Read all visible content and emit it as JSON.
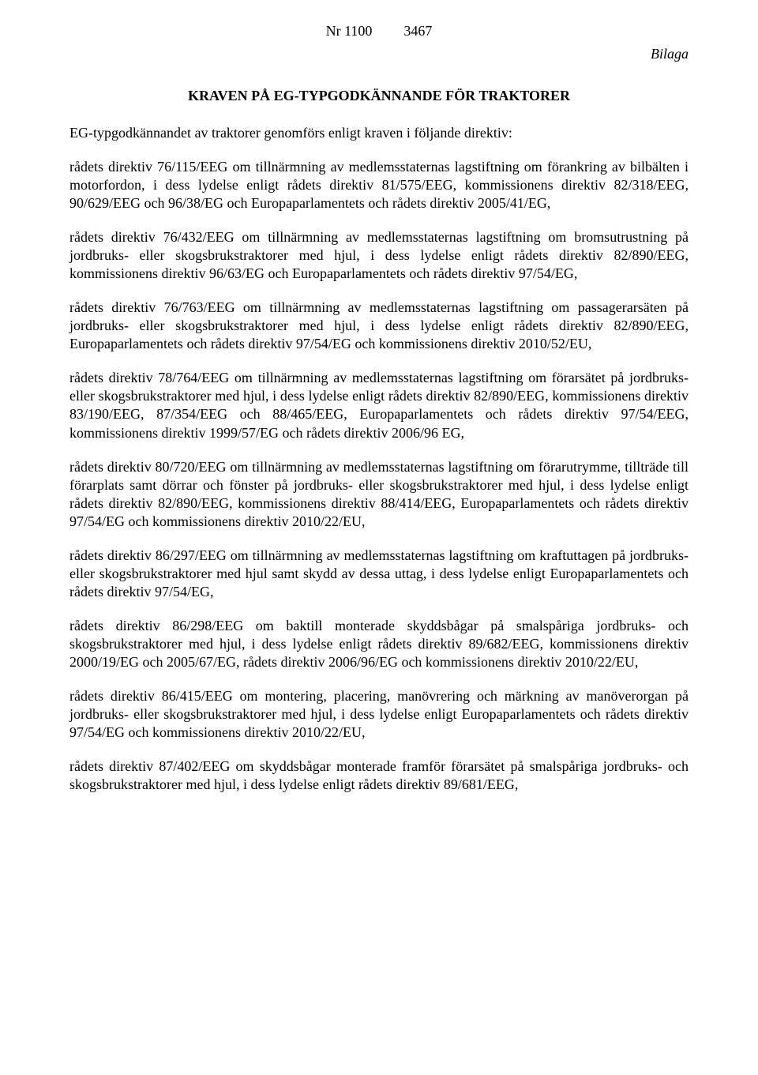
{
  "header": {
    "doc_nr": "Nr 1100",
    "page_nr": "3467",
    "annex_label": "Bilaga"
  },
  "title": "KRAVEN PÅ EG-TYPGODKÄNNANDE FÖR TRAKTORER",
  "intro": "EG-typgodkännandet av traktorer genomförs enligt kraven i följande direktiv:",
  "paragraphs": [
    "rådets direktiv 76/115/EEG om tillnärmning av medlemsstaternas lagstiftning om förankring av bilbälten i motorfordon, i dess lydelse enligt rådets direktiv 81/575/EEG, kommissionens direktiv 82/318/EEG, 90/629/EEG och 96/38/EG och Europaparlamentets och rådets direktiv 2005/41/EG,",
    "rådets direktiv 76/432/EEG om tillnärmning av medlemsstaternas lagstiftning om bromsutrustning på jordbruks- eller skogsbrukstraktorer med hjul, i dess lydelse enligt rådets direktiv 82/890/EEG, kommissionens direktiv 96/63/EG och Europaparlamentets och rådets direktiv 97/54/EG,",
    "rådets direktiv 76/763/EEG om tillnärmning av medlemsstaternas lagstiftning om passagerarsäten på jordbruks- eller skogsbrukstraktorer med hjul, i dess lydelse enligt rådets direktiv 82/890/EEG, Europaparlamentets och rådets direktiv 97/54/EG och kommissionens direktiv 2010/52/EU,",
    "rådets direktiv 78/764/EEG om tillnärmning av medlemsstaternas lagstiftning om förarsätet på jordbruks- eller skogsbrukstraktorer med hjul, i dess lydelse enligt rådets direktiv 82/890/EEG, kommissionens direktiv 83/190/EEG, 87/354/EEG och 88/465/EEG, Europaparlamentets och rådets direktiv 97/54/EEG, kommissionens direktiv 1999/57/EG och rådets direktiv 2006/96 EG,",
    "rådets direktiv 80/720/EEG om tillnärmning av medlemsstaternas lagstiftning om förarutrymme, tillträde till förarplats samt dörrar och fönster på jordbruks- eller skogsbrukstraktorer med hjul, i dess lydelse enligt rådets direktiv 82/890/EEG, kommissionens direktiv 88/414/EEG, Europaparlamentets och rådets direktiv 97/54/EG och kommissionens direktiv 2010/22/EU,",
    "rådets direktiv 86/297/EEG om tillnärmning av medlemsstaternas lagstiftning om kraftuttagen på jordbruks- eller skogsbrukstraktorer med hjul samt skydd av dessa uttag, i dess lydelse enligt Europaparlamentets och rådets direktiv 97/54/EG,",
    "rådets direktiv 86/298/EEG om baktill monterade skyddsbågar på smalspåriga jordbruks- och skogsbrukstraktorer med hjul, i dess lydelse enligt rådets direktiv 89/682/EEG, kommissionens direktiv 2000/19/EG och 2005/67/EG, rådets direktiv 2006/96/EG och kommissionens direktiv 2010/22/EU,",
    "rådets direktiv 86/415/EEG om montering, placering, manövrering och märkning av manöverorgan på jordbruks- eller skogsbrukstraktorer med hjul, i dess lydelse enligt Europaparlamentets och rådets direktiv 97/54/EG och kommissionens direktiv 2010/22/EU,",
    "rådets direktiv 87/402/EEG om skyddsbågar monterade framför förarsätet på smalspåriga jordbruks- och skogsbrukstraktorer med hjul, i dess lydelse enligt rådets direktiv 89/681/EEG,"
  ]
}
